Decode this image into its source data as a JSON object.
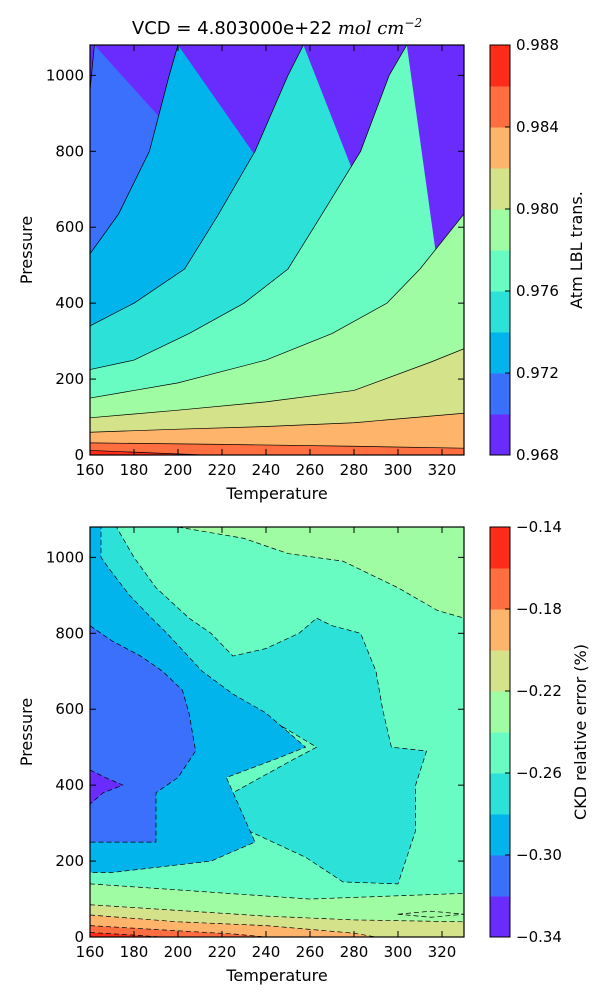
{
  "chart_data": [
    {
      "type": "contour",
      "title": "VCD = 4.803000e+22",
      "title_math": "mol cm",
      "title_math_exp": "−2",
      "xlabel": "Temperature",
      "ylabel": "Pressure",
      "xlim": [
        160,
        330
      ],
      "ylim": [
        0,
        1080
      ],
      "xticks": [
        160,
        180,
        200,
        220,
        240,
        260,
        280,
        300,
        320
      ],
      "yticks": [
        0,
        200,
        400,
        600,
        800,
        1000
      ],
      "line_style": "solid",
      "colorbar": {
        "label": "Atm LBL trans.",
        "min": 0.968,
        "max": 0.988,
        "ticks": [
          "0.968",
          "0.972",
          "0.976",
          "0.980",
          "0.984",
          "0.988"
        ],
        "levels": [
          0.968,
          0.9705,
          0.973,
          0.9755,
          0.978,
          0.9805,
          0.983,
          0.9855,
          0.988
        ],
        "colors": [
          "#6a2cfc",
          "#3a70fc",
          "#02b4ec",
          "#2ce2d8",
          "#68fcc2",
          "#a0fca2",
          "#d4e28a",
          "#feb46a",
          "#ff6e40",
          "#ff2c1a"
        ]
      },
      "contours": [
        {
          "level": 0.9705,
          "points": [
            [
              160,
              960
            ],
            [
              162,
              1080
            ]
          ]
        },
        {
          "level": 0.973,
          "points": [
            [
              160,
              530
            ],
            [
              173,
              635
            ],
            [
              187,
              800
            ],
            [
              196,
              1000
            ],
            [
              200,
              1080
            ]
          ]
        },
        {
          "level": 0.9755,
          "points": [
            [
              160,
              340
            ],
            [
              180,
              400
            ],
            [
              203,
              490
            ],
            [
              218,
              630
            ],
            [
              235,
              800
            ],
            [
              250,
              1000
            ],
            [
              257,
              1080
            ]
          ]
        },
        {
          "level": 0.978,
          "points": [
            [
              160,
              225
            ],
            [
              180,
              250
            ],
            [
              205,
              320
            ],
            [
              230,
              400
            ],
            [
              250,
              490
            ],
            [
              265,
              630
            ],
            [
              283,
              800
            ],
            [
              296,
              1000
            ],
            [
              304,
              1080
            ]
          ]
        },
        {
          "level": 0.9805,
          "points": [
            [
              160,
              150
            ],
            [
              200,
              190
            ],
            [
              240,
              250
            ],
            [
              270,
              320
            ],
            [
              295,
              400
            ],
            [
              310,
              490
            ],
            [
              330,
              635
            ]
          ]
        },
        {
          "level": 0.983,
          "points": [
            [
              160,
              98
            ],
            [
              200,
              118
            ],
            [
              240,
              140
            ],
            [
              280,
              170
            ],
            [
              315,
              245
            ],
            [
              330,
              280
            ]
          ]
        },
        {
          "level": 0.9855,
          "points": [
            [
              160,
              60
            ],
            [
              200,
              68
            ],
            [
              240,
              75
            ],
            [
              280,
              85
            ],
            [
              330,
              110
            ]
          ]
        },
        {
          "level": 0.988,
          "points": [
            [
              160,
              32
            ],
            [
              220,
              28
            ],
            [
              280,
              23
            ],
            [
              330,
              18
            ]
          ]
        },
        {
          "level": 0.9905,
          "points": [
            [
              160,
              12
            ],
            [
              195,
              4
            ],
            [
              212,
              0
            ]
          ]
        }
      ]
    },
    {
      "type": "contour",
      "title": "",
      "xlabel": "Temperature",
      "ylabel": "Pressure",
      "xlim": [
        160,
        330
      ],
      "ylim": [
        0,
        1080
      ],
      "xticks": [
        160,
        180,
        200,
        220,
        240,
        260,
        280,
        300,
        320
      ],
      "yticks": [
        0,
        200,
        400,
        600,
        800,
        1000
      ],
      "line_style": "dashed",
      "background_color": "#68fcc2",
      "colorbar": {
        "label": "CKD relative error (%)",
        "min": -0.34,
        "max": -0.14,
        "ticks": [
          "−0.34",
          "−0.30",
          "−0.26",
          "−0.22",
          "−0.18",
          "−0.14"
        ],
        "levels": [
          -0.34,
          -0.315,
          -0.29,
          -0.265,
          -0.24,
          -0.215,
          -0.19,
          -0.165,
          -0.14
        ],
        "colors": [
          "#6a2cfc",
          "#3a70fc",
          "#02b4ec",
          "#2ce2d8",
          "#68fcc2",
          "#a0fca2",
          "#d4e28a",
          "#feb46a",
          "#ff6e40",
          "#ff2c1a"
        ]
      },
      "regions": [
        {
          "color_index": 5,
          "points": [
            [
              160,
              140
            ],
            [
              210,
              120
            ],
            [
              260,
              100
            ],
            [
              330,
              115
            ],
            [
              330,
              0
            ],
            [
              160,
              0
            ]
          ]
        },
        {
          "color_index": 6,
          "points": [
            [
              160,
              85
            ],
            [
              200,
              70
            ],
            [
              240,
              55
            ],
            [
              280,
              45
            ],
            [
              330,
              40
            ],
            [
              330,
              0
            ],
            [
              160,
              0
            ]
          ]
        },
        {
          "color_index": 5,
          "points": [
            [
              300,
              60
            ],
            [
              315,
              68
            ],
            [
              330,
              60
            ],
            [
              315,
              52
            ]
          ]
        },
        {
          "color_index": 7,
          "points": [
            [
              160,
              58
            ],
            [
              200,
              40
            ],
            [
              240,
              30
            ],
            [
              260,
              20
            ],
            [
              280,
              10
            ],
            [
              290,
              0
            ],
            [
              160,
              0
            ]
          ]
        },
        {
          "color_index": 8,
          "points": [
            [
              160,
              30
            ],
            [
              195,
              18
            ],
            [
              225,
              8
            ],
            [
              240,
              0
            ],
            [
              160,
              0
            ]
          ]
        },
        {
          "color_index": 9,
          "points": [
            [
              160,
              12
            ],
            [
              180,
              5
            ],
            [
              192,
              0
            ],
            [
              160,
              0
            ]
          ]
        },
        {
          "color_index": 5,
          "points": [
            [
              200,
              1080
            ],
            [
              230,
              1050
            ],
            [
              250,
              1010
            ],
            [
              275,
              990
            ],
            [
              300,
              920
            ],
            [
              318,
              860
            ],
            [
              330,
              840
            ],
            [
              330,
              1080
            ]
          ]
        },
        {
          "color_index": 3,
          "points": [
            [
              160,
              1080
            ],
            [
              172,
              1080
            ],
            [
              180,
              1000
            ],
            [
              190,
              920
            ],
            [
              205,
              840
            ],
            [
              215,
              800
            ],
            [
              225,
              740
            ],
            [
              240,
              760
            ],
            [
              255,
              800
            ],
            [
              263,
              840
            ],
            [
              270,
              820
            ],
            [
              283,
              800
            ],
            [
              290,
              700
            ],
            [
              293,
              600
            ],
            [
              297,
              500
            ],
            [
              313,
              490
            ],
            [
              308,
              400
            ],
            [
              308,
              280
            ],
            [
              300,
              140
            ],
            [
              275,
              145
            ],
            [
              258,
              210
            ],
            [
              232,
              280
            ],
            [
              225,
              380
            ],
            [
              250,
              460
            ],
            [
              263,
              500
            ],
            [
              240,
              580
            ],
            [
              220,
              640
            ],
            [
              210,
              700
            ],
            [
              195,
              760
            ],
            [
              175,
              800
            ],
            [
              165,
              840
            ],
            [
              160,
              840
            ]
          ]
        },
        {
          "color_index": 2,
          "points": [
            [
              160,
              1080
            ],
            [
              165,
              1080
            ],
            [
              165,
              1000
            ],
            [
              170,
              960
            ],
            [
              178,
              900
            ],
            [
              188,
              840
            ],
            [
              195,
              800
            ],
            [
              203,
              750
            ],
            [
              211,
              700
            ],
            [
              225,
              640
            ],
            [
              240,
              590
            ],
            [
              258,
              500
            ],
            [
              245,
              470
            ],
            [
              222,
              420
            ],
            [
              235,
              250
            ],
            [
              215,
              200
            ],
            [
              170,
              170
            ],
            [
              160,
              170
            ]
          ]
        },
        {
          "color_index": 1,
          "points": [
            [
              160,
              820
            ],
            [
              170,
              780
            ],
            [
              183,
              740
            ],
            [
              193,
              700
            ],
            [
              202,
              650
            ],
            [
              205,
              590
            ],
            [
              208,
              490
            ],
            [
              200,
              420
            ],
            [
              190,
              380
            ],
            [
              190,
              250
            ],
            [
              168,
              250
            ],
            [
              160,
              250
            ]
          ]
        },
        {
          "color_index": 0,
          "points": [
            [
              160,
              440
            ],
            [
              167,
              420
            ],
            [
              175,
              400
            ],
            [
              166,
              380
            ],
            [
              160,
              350
            ]
          ]
        }
      ]
    }
  ]
}
